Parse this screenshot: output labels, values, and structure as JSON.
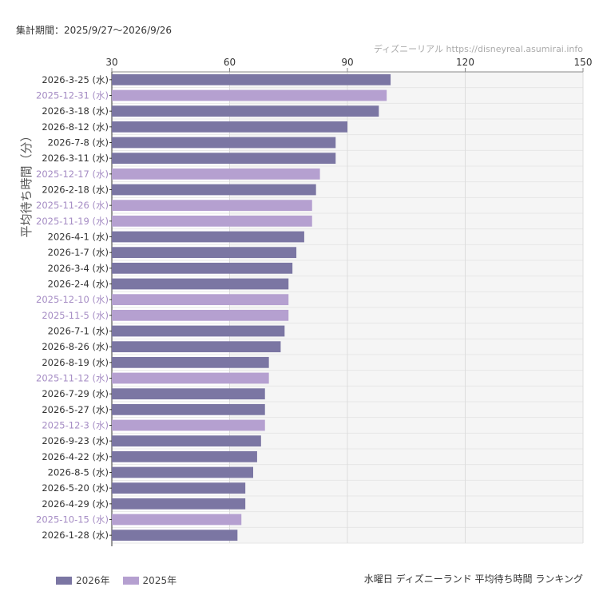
{
  "header": {
    "period": "集計期間：2025/9/27〜2026/9/26",
    "source": "ディズニーリアル  https://disneyreal.asumirai.info"
  },
  "footer": {
    "title": "水曜日 ディズニーランド 平均待ち時間 ランキング"
  },
  "colors": {
    "series_2026": "#7b76a3",
    "series_2025": "#b5a0d0",
    "label_2026": "#333333",
    "label_2025": "#a58cc4",
    "future_band": "#f5f5f5"
  },
  "chart_data": {
    "type": "bar",
    "orientation": "horizontal",
    "ylabel": "平均待ち時間（分）",
    "xlim": [
      30,
      150
    ],
    "xticks": [
      30,
      60,
      90,
      120,
      150
    ],
    "legend": [
      {
        "name": "2026年",
        "key": "2026"
      },
      {
        "name": "2025年",
        "key": "2025"
      }
    ],
    "bars": [
      {
        "label": "2026-3-25 (水)",
        "value": 101,
        "series": "2026"
      },
      {
        "label": "2025-12-31 (水)",
        "value": 100,
        "series": "2025"
      },
      {
        "label": "2026-3-18 (水)",
        "value": 98,
        "series": "2026"
      },
      {
        "label": "2026-8-12 (水)",
        "value": 90,
        "series": "2026"
      },
      {
        "label": "2026-7-8 (水)",
        "value": 87,
        "series": "2026"
      },
      {
        "label": "2026-3-11 (水)",
        "value": 87,
        "series": "2026"
      },
      {
        "label": "2025-12-17 (水)",
        "value": 83,
        "series": "2025"
      },
      {
        "label": "2026-2-18 (水)",
        "value": 82,
        "series": "2026"
      },
      {
        "label": "2025-11-26 (水)",
        "value": 81,
        "series": "2025"
      },
      {
        "label": "2025-11-19 (水)",
        "value": 81,
        "series": "2025"
      },
      {
        "label": "2026-4-1 (水)",
        "value": 79,
        "series": "2026"
      },
      {
        "label": "2026-1-7 (水)",
        "value": 77,
        "series": "2026"
      },
      {
        "label": "2026-3-4 (水)",
        "value": 76,
        "series": "2026"
      },
      {
        "label": "2026-2-4 (水)",
        "value": 75,
        "series": "2026"
      },
      {
        "label": "2025-12-10 (水)",
        "value": 75,
        "series": "2025"
      },
      {
        "label": "2025-11-5 (水)",
        "value": 75,
        "series": "2025"
      },
      {
        "label": "2026-7-1 (水)",
        "value": 74,
        "series": "2026"
      },
      {
        "label": "2026-8-26 (水)",
        "value": 73,
        "series": "2026"
      },
      {
        "label": "2026-8-19 (水)",
        "value": 70,
        "series": "2026"
      },
      {
        "label": "2025-11-12 (水)",
        "value": 70,
        "series": "2025"
      },
      {
        "label": "2026-7-29 (水)",
        "value": 69,
        "series": "2026"
      },
      {
        "label": "2026-5-27 (水)",
        "value": 69,
        "series": "2026"
      },
      {
        "label": "2025-12-3 (水)",
        "value": 69,
        "series": "2025"
      },
      {
        "label": "2026-9-23 (水)",
        "value": 68,
        "series": "2026"
      },
      {
        "label": "2026-4-22 (水)",
        "value": 67,
        "series": "2026"
      },
      {
        "label": "2026-8-5 (水)",
        "value": 66,
        "series": "2026"
      },
      {
        "label": "2026-5-20 (水)",
        "value": 64,
        "series": "2026"
      },
      {
        "label": "2026-4-29 (水)",
        "value": 64,
        "series": "2026"
      },
      {
        "label": "2025-10-15 (水)",
        "value": 63,
        "series": "2025"
      },
      {
        "label": "2026-1-28 (水)",
        "value": 62,
        "series": "2026"
      }
    ]
  }
}
